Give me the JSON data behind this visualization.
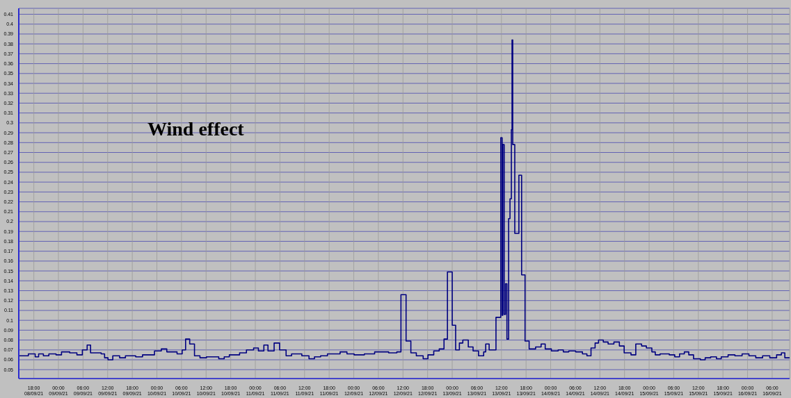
{
  "chart_data": {
    "type": "step",
    "title": "Wind effect",
    "x": [
      "--09-08T14:30",
      "--09-08T16:40",
      "--09-08T18:20",
      "--09-08T19:10",
      "--09-08T20:20",
      "--09-08T21:40",
      "--09-08T23:25",
      "--09-09T00:45",
      "--09-09T02:45",
      "--09-09T04:30",
      "--09-09T05:50",
      "--09-09T07:00",
      "--09-09T07:50",
      "--09-09T10:25",
      "--09-09T11:15",
      "--09-09T12:05",
      "--09-09T13:15",
      "--09-09T14:55",
      "--09-09T16:20",
      "--09-09T18:50",
      "--09-09T20:30",
      "--09-09T23:25",
      "--09-10T01:05",
      "--09-10T02:25",
      "--09-10T04:55",
      "--09-10T06:10",
      "--09-10T07:00",
      "--09-10T08:00",
      "--09-10T09:10",
      "--09-10T10:30",
      "--09-10T12:05",
      "--09-10T15:05",
      "--09-10T16:25",
      "--09-10T17:40",
      "--09-10T20:10",
      "--09-10T21:50",
      "--09-10T23:35",
      "--09-11T00:45",
      "--09-11T02:05",
      "--09-11T03:05",
      "--09-11T04:35",
      "--09-11T05:55",
      "--09-11T07:30",
      "--09-11T08:50",
      "--09-11T11:20",
      "--09-11T13:05",
      "--09-11T14:25",
      "--09-11T15:55",
      "--09-11T17:35",
      "--09-11T20:40",
      "--09-11T22:20",
      "--09-12T00:05",
      "--09-12T02:35",
      "--09-12T05:05",
      "--09-12T08:30",
      "--09-12T10:30",
      "--09-12T11:30",
      "--09-12T12:45",
      "--09-12T13:55",
      "--09-12T15:15",
      "--09-12T16:55",
      "--09-12T18:05",
      "--09-12T19:30",
      "--09-12T20:50",
      "--09-12T22:00",
      "--09-12T22:50",
      "--09-13T00:00",
      "--09-13T00:50",
      "--09-13T01:45",
      "--09-13T02:35",
      "--09-13T03:55",
      "--09-13T05:05",
      "--09-13T06:25",
      "--09-13T07:40",
      "--09-13T08:10",
      "--09-13T09:00",
      "--09-13T10:40",
      "--09-13T11:50",
      "--09-13T12:10",
      "--09-13T12:20",
      "--09-13T12:40",
      "--09-13T13:00",
      "--09-13T13:20",
      "--09-13T13:45",
      "--09-13T14:05",
      "--09-13T14:25",
      "--09-13T14:35",
      "--09-13T14:45",
      "--09-13T15:15",
      "--09-13T16:15",
      "--09-13T16:55",
      "--09-13T17:45",
      "--09-13T18:45",
      "--09-13T20:20",
      "--09-13T21:40",
      "--09-13T22:40",
      "--09-14T00:10",
      "--09-14T01:50",
      "--09-14T03:05",
      "--09-14T04:25",
      "--09-14T06:05",
      "--09-14T07:45",
      "--09-14T08:50",
      "--09-14T09:50",
      "--09-14T10:50",
      "--09-14T11:40",
      "--09-14T12:50",
      "--09-14T14:00",
      "--09-14T15:25",
      "--09-14T16:45",
      "--09-14T17:55",
      "--09-14T19:35",
      "--09-14T20:45",
      "--09-14T22:10",
      "--09-14T23:20",
      "--09-15T00:40",
      "--09-15T01:30",
      "--09-15T02:40",
      "--09-15T04:55",
      "--09-15T06:15",
      "--09-15T07:25",
      "--09-15T08:35",
      "--09-15T09:40",
      "--09-15T10:50",
      "--09-15T12:30",
      "--09-15T13:40",
      "--09-15T15:00",
      "--09-15T16:25",
      "--09-15T17:35",
      "--09-15T19:15",
      "--09-15T20:55",
      "--09-15T22:40",
      "--09-16T00:20",
      "--09-16T02:00",
      "--09-16T03:40",
      "--09-16T05:25",
      "--09-16T07:05",
      "--09-16T08:15",
      "--09-16T09:05",
      "--09-16T10:15"
    ],
    "series": [
      {
        "color": "#000080",
        "values": [
          0.064,
          0.066,
          0.063,
          0.066,
          0.064,
          0.066,
          0.065,
          0.068,
          0.067,
          0.065,
          0.07,
          0.075,
          0.067,
          0.066,
          0.062,
          0.06,
          0.064,
          0.062,
          0.064,
          0.063,
          0.065,
          0.069,
          0.071,
          0.068,
          0.066,
          0.07,
          0.081,
          0.076,
          0.064,
          0.062,
          0.063,
          0.061,
          0.063,
          0.065,
          0.067,
          0.07,
          0.072,
          0.069,
          0.075,
          0.069,
          0.077,
          0.07,
          0.064,
          0.066,
          0.064,
          0.061,
          0.063,
          0.064,
          0.066,
          0.068,
          0.066,
          0.065,
          0.066,
          0.068,
          0.067,
          0.068,
          0.126,
          0.079,
          0.067,
          0.064,
          0.061,
          0.065,
          0.069,
          0.071,
          0.081,
          0.149,
          0.095,
          0.07,
          0.077,
          0.08,
          0.073,
          0.069,
          0.064,
          0.068,
          0.076,
          0.07,
          0.103,
          0.285,
          0.105,
          0.278,
          0.106,
          0.137,
          0.081,
          0.203,
          0.223,
          0.293,
          0.384,
          0.278,
          0.188,
          0.247,
          0.146,
          0.079,
          0.071,
          0.073,
          0.076,
          0.071,
          0.069,
          0.07,
          0.068,
          0.069,
          0.068,
          0.066,
          0.064,
          0.072,
          0.077,
          0.08,
          0.078,
          0.076,
          0.078,
          0.074,
          0.067,
          0.065,
          0.076,
          0.074,
          0.072,
          0.068,
          0.065,
          0.066,
          0.065,
          0.063,
          0.066,
          0.068,
          0.065,
          0.061,
          0.06,
          0.062,
          0.063,
          0.061,
          0.063,
          0.065,
          0.064,
          0.066,
          0.064,
          0.062,
          0.064,
          0.062,
          0.065,
          0.067,
          0.062,
          0.062
        ]
      }
    ],
    "xlim": [
      "--09-08T14:20",
      "--09-16T10:15"
    ],
    "xticks": [
      {
        "value": "--09-08T18:00",
        "label": "18:00\n08/09/21"
      },
      {
        "value": "--09-09T00:00",
        "label": "00:00\n09/09/21"
      },
      {
        "value": "--09-09T06:00",
        "label": "06:00\n09/09/21"
      },
      {
        "value": "--09-09T12:00",
        "label": "12:00\n09/09/21"
      },
      {
        "value": "--09-09T18:00",
        "label": "18:00\n09/09/21"
      },
      {
        "value": "--09-10T00:00",
        "label": "00:00\n10/09/21"
      },
      {
        "value": "--09-10T06:00",
        "label": "06:00\n10/09/21"
      },
      {
        "value": "--09-10T12:00",
        "label": "12:00\n10/09/21"
      },
      {
        "value": "--09-10T18:00",
        "label": "18:00\n10/09/21"
      },
      {
        "value": "--09-11T00:00",
        "label": "00:00\n11/09/21"
      },
      {
        "value": "--09-11T06:00",
        "label": "06:00\n11/09/21"
      },
      {
        "value": "--09-11T12:00",
        "label": "12:00\n11/09/21"
      },
      {
        "value": "--09-11T18:00",
        "label": "18:00\n11/09/21"
      },
      {
        "value": "--09-12T00:00",
        "label": "00:00\n12/09/21"
      },
      {
        "value": "--09-12T06:00",
        "label": "06:00\n12/09/21"
      },
      {
        "value": "--09-12T12:00",
        "label": "12:00\n12/09/21"
      },
      {
        "value": "--09-12T18:00",
        "label": "18:00\n12/09/21"
      },
      {
        "value": "--09-13T00:00",
        "label": "00:00\n13/09/21"
      },
      {
        "value": "--09-13T06:00",
        "label": "06:00\n13/09/21"
      },
      {
        "value": "--09-13T12:00",
        "label": "12:00\n13/09/21"
      },
      {
        "value": "--09-13T18:00",
        "label": "18:00\n13/09/21"
      },
      {
        "value": "--09-14T00:00",
        "label": "00:00\n14/09/21"
      },
      {
        "value": "--09-14T06:00",
        "label": "06:00\n14/09/21"
      },
      {
        "value": "--09-14T12:00",
        "label": "12:00\n14/09/21"
      },
      {
        "value": "--09-14T18:00",
        "label": "18:00\n14/09/21"
      },
      {
        "value": "--09-15T00:00",
        "label": "00:00\n15/09/21"
      },
      {
        "value": "--09-15T06:00",
        "label": "06:00\n15/09/21"
      },
      {
        "value": "--09-15T12:00",
        "label": "12:00\n15/09/21"
      },
      {
        "value": "--09-15T18:00",
        "label": "18:00\n15/09/21"
      },
      {
        "value": "--09-16T00:00",
        "label": "00:00\n16/09/21"
      },
      {
        "value": "--09-16T06:00",
        "label": "06:00\n16/09/21"
      }
    ],
    "ylim": [
      0.041,
      0.416
    ],
    "yticks": [
      0.05,
      0.06,
      0.07,
      0.08,
      0.09,
      0.1,
      0.11,
      0.12,
      0.13,
      0.14,
      0.15,
      0.16,
      0.17,
      0.18,
      0.19,
      0.2,
      0.21,
      0.22,
      0.23,
      0.24,
      0.25,
      0.26,
      0.27,
      0.28,
      0.29,
      0.3,
      0.31,
      0.32,
      0.33,
      0.34,
      0.35,
      0.36,
      0.37,
      0.38,
      0.39,
      0.4,
      0.41
    ],
    "grid": true,
    "legend": false,
    "marker": "none",
    "line_style": "solid"
  }
}
